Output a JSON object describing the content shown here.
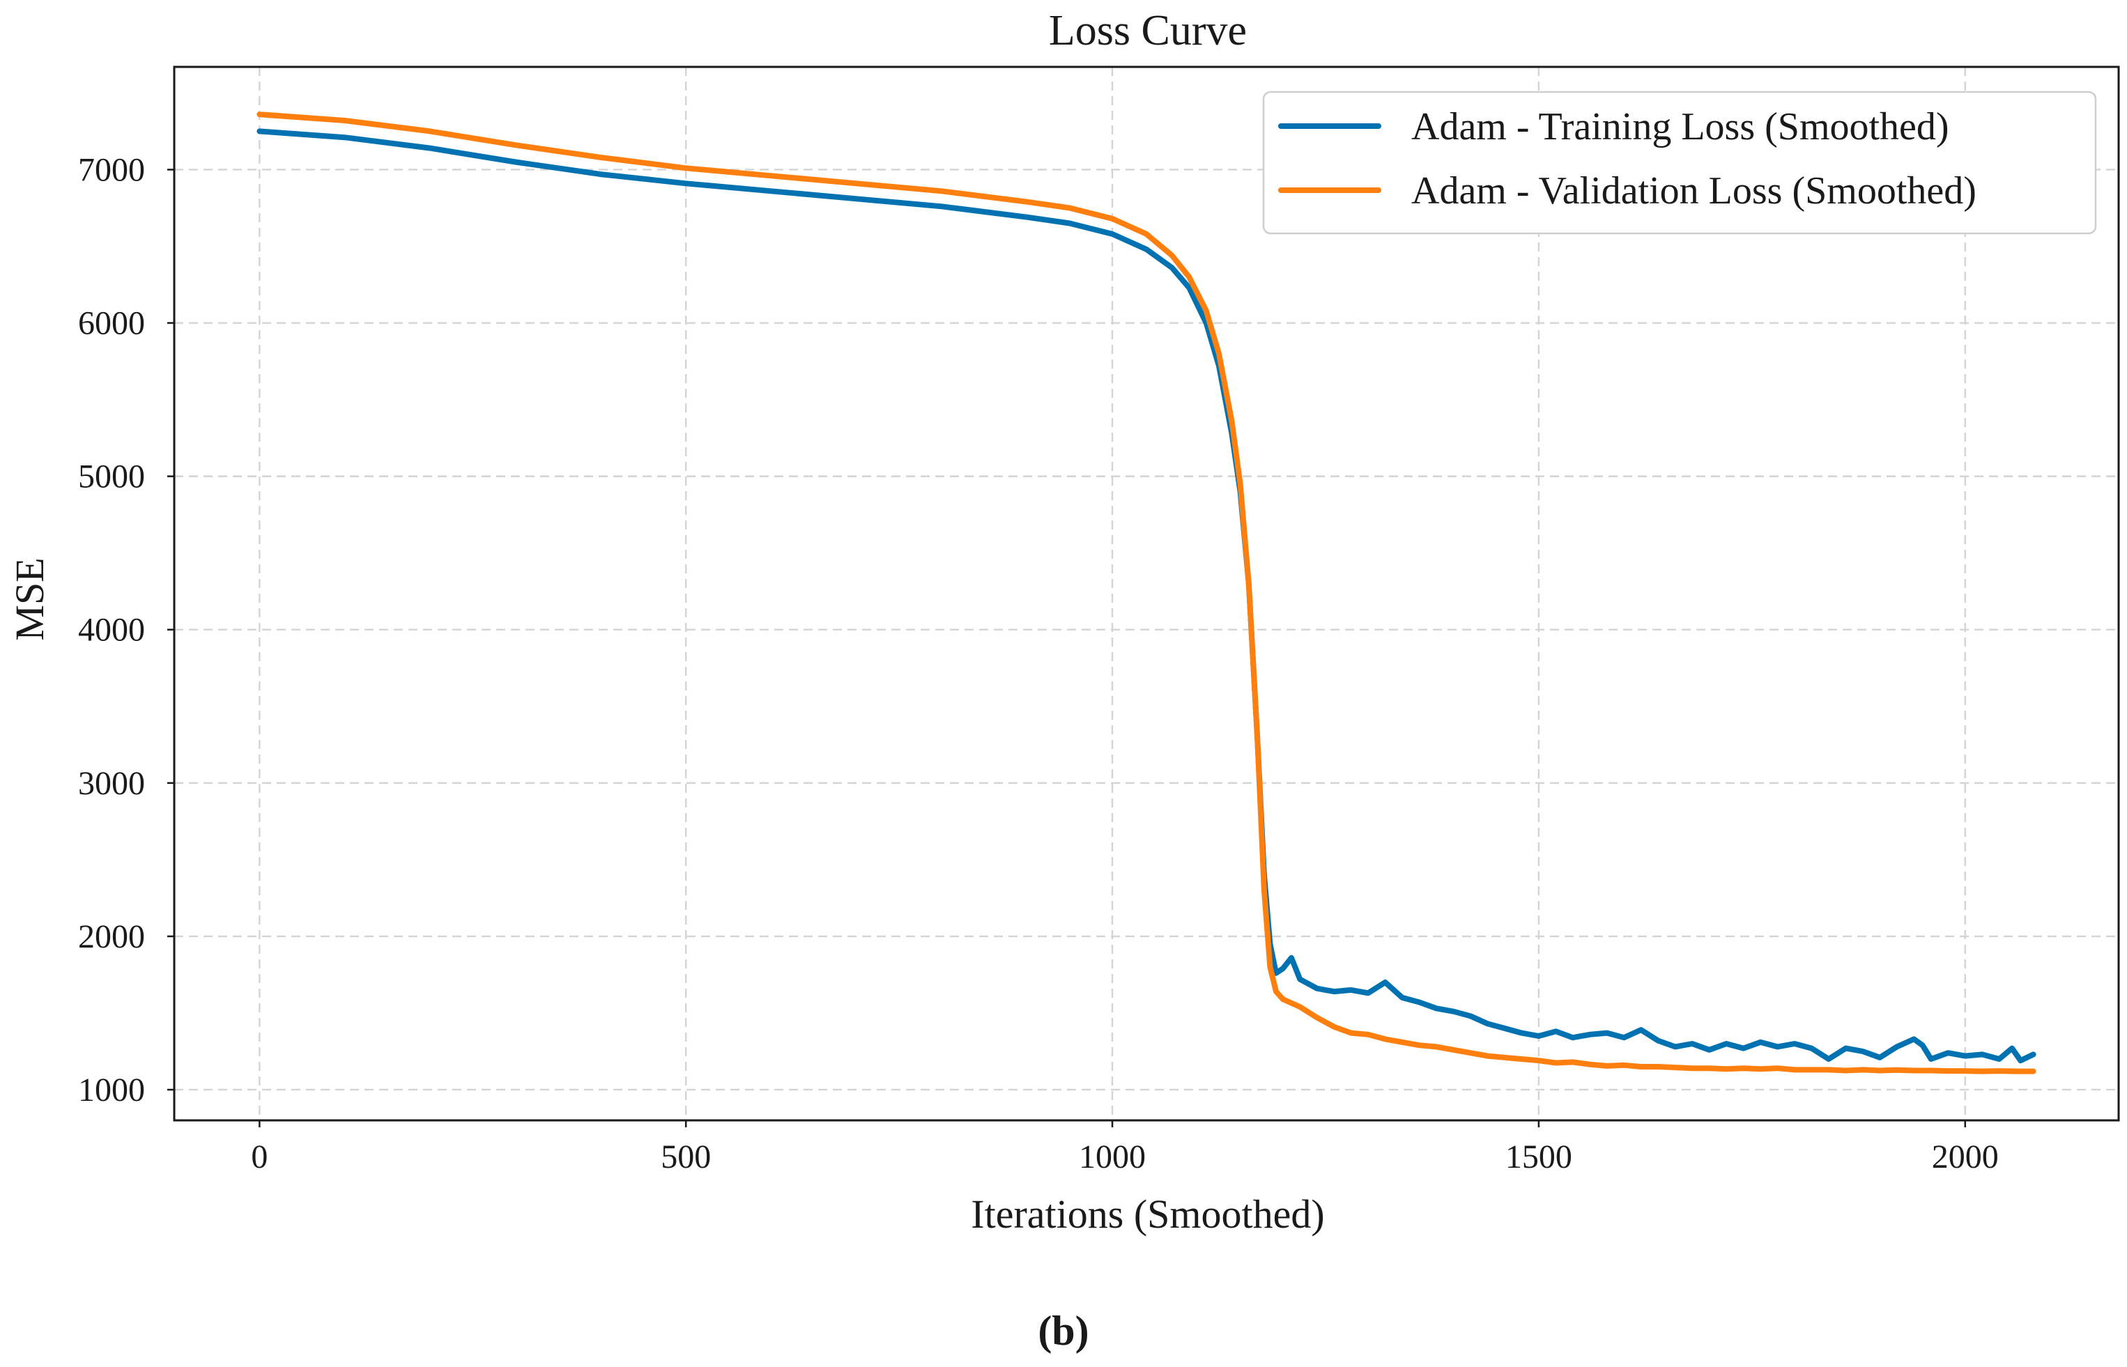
{
  "chart_data": {
    "type": "line",
    "title": "Loss Curve",
    "xlabel": "Iterations (Smoothed)",
    "ylabel": "MSE",
    "xlim": [
      -100,
      2180
    ],
    "ylim": [
      800,
      7670
    ],
    "xticks": [
      0,
      500,
      1000,
      1500,
      2000
    ],
    "yticks": [
      1000,
      2000,
      3000,
      4000,
      5000,
      6000,
      7000
    ],
    "grid": true,
    "legend_position": "top-right",
    "panel_label": "(b)",
    "series": [
      {
        "name": "Adam - Training Loss (Smoothed)",
        "color": "#0072b2",
        "points": [
          [
            0,
            7250
          ],
          [
            100,
            7210
          ],
          [
            200,
            7140
          ],
          [
            300,
            7050
          ],
          [
            400,
            6970
          ],
          [
            500,
            6910
          ],
          [
            600,
            6860
          ],
          [
            700,
            6810
          ],
          [
            800,
            6760
          ],
          [
            900,
            6690
          ],
          [
            950,
            6650
          ],
          [
            1000,
            6580
          ],
          [
            1040,
            6480
          ],
          [
            1070,
            6360
          ],
          [
            1090,
            6230
          ],
          [
            1110,
            6000
          ],
          [
            1125,
            5720
          ],
          [
            1140,
            5280
          ],
          [
            1150,
            4900
          ],
          [
            1160,
            4300
          ],
          [
            1170,
            3300
          ],
          [
            1178,
            2400
          ],
          [
            1185,
            1950
          ],
          [
            1192,
            1760
          ],
          [
            1200,
            1790
          ],
          [
            1210,
            1860
          ],
          [
            1220,
            1720
          ],
          [
            1240,
            1660
          ],
          [
            1260,
            1640
          ],
          [
            1280,
            1650
          ],
          [
            1300,
            1630
          ],
          [
            1320,
            1700
          ],
          [
            1340,
            1600
          ],
          [
            1360,
            1570
          ],
          [
            1380,
            1530
          ],
          [
            1400,
            1510
          ],
          [
            1420,
            1480
          ],
          [
            1440,
            1430
          ],
          [
            1460,
            1400
          ],
          [
            1480,
            1370
          ],
          [
            1500,
            1350
          ],
          [
            1520,
            1380
          ],
          [
            1540,
            1340
          ],
          [
            1560,
            1360
          ],
          [
            1580,
            1370
          ],
          [
            1600,
            1340
          ],
          [
            1620,
            1390
          ],
          [
            1640,
            1320
          ],
          [
            1660,
            1280
          ],
          [
            1680,
            1300
          ],
          [
            1700,
            1260
          ],
          [
            1720,
            1300
          ],
          [
            1740,
            1270
          ],
          [
            1760,
            1310
          ],
          [
            1780,
            1280
          ],
          [
            1800,
            1300
          ],
          [
            1820,
            1270
          ],
          [
            1840,
            1200
          ],
          [
            1860,
            1270
          ],
          [
            1880,
            1250
          ],
          [
            1900,
            1210
          ],
          [
            1920,
            1280
          ],
          [
            1940,
            1330
          ],
          [
            1950,
            1290
          ],
          [
            1960,
            1200
          ],
          [
            1980,
            1240
          ],
          [
            2000,
            1220
          ],
          [
            2020,
            1230
          ],
          [
            2040,
            1200
          ],
          [
            2055,
            1270
          ],
          [
            2065,
            1190
          ],
          [
            2080,
            1230
          ]
        ]
      },
      {
        "name": "Adam - Validation Loss (Smoothed)",
        "color": "#ff7f0e",
        "points": [
          [
            0,
            7360
          ],
          [
            100,
            7320
          ],
          [
            200,
            7250
          ],
          [
            300,
            7160
          ],
          [
            400,
            7080
          ],
          [
            500,
            7010
          ],
          [
            600,
            6960
          ],
          [
            700,
            6910
          ],
          [
            800,
            6860
          ],
          [
            900,
            6790
          ],
          [
            950,
            6750
          ],
          [
            1000,
            6680
          ],
          [
            1040,
            6580
          ],
          [
            1070,
            6440
          ],
          [
            1090,
            6300
          ],
          [
            1110,
            6080
          ],
          [
            1125,
            5800
          ],
          [
            1140,
            5360
          ],
          [
            1150,
            4950
          ],
          [
            1160,
            4300
          ],
          [
            1170,
            3300
          ],
          [
            1178,
            2300
          ],
          [
            1185,
            1800
          ],
          [
            1192,
            1640
          ],
          [
            1200,
            1590
          ],
          [
            1220,
            1540
          ],
          [
            1240,
            1470
          ],
          [
            1260,
            1410
          ],
          [
            1280,
            1370
          ],
          [
            1300,
            1360
          ],
          [
            1320,
            1330
          ],
          [
            1340,
            1310
          ],
          [
            1360,
            1290
          ],
          [
            1380,
            1280
          ],
          [
            1400,
            1260
          ],
          [
            1420,
            1240
          ],
          [
            1440,
            1220
          ],
          [
            1460,
            1210
          ],
          [
            1480,
            1200
          ],
          [
            1500,
            1190
          ],
          [
            1520,
            1175
          ],
          [
            1540,
            1180
          ],
          [
            1560,
            1165
          ],
          [
            1580,
            1155
          ],
          [
            1600,
            1160
          ],
          [
            1620,
            1150
          ],
          [
            1640,
            1150
          ],
          [
            1660,
            1145
          ],
          [
            1680,
            1140
          ],
          [
            1700,
            1140
          ],
          [
            1720,
            1135
          ],
          [
            1740,
            1140
          ],
          [
            1760,
            1135
          ],
          [
            1780,
            1140
          ],
          [
            1800,
            1130
          ],
          [
            1820,
            1130
          ],
          [
            1840,
            1130
          ],
          [
            1860,
            1125
          ],
          [
            1880,
            1130
          ],
          [
            1900,
            1125
          ],
          [
            1920,
            1128
          ],
          [
            1940,
            1125
          ],
          [
            1960,
            1125
          ],
          [
            1980,
            1122
          ],
          [
            2000,
            1122
          ],
          [
            2020,
            1120
          ],
          [
            2040,
            1122
          ],
          [
            2060,
            1120
          ],
          [
            2080,
            1120
          ]
        ]
      }
    ]
  }
}
